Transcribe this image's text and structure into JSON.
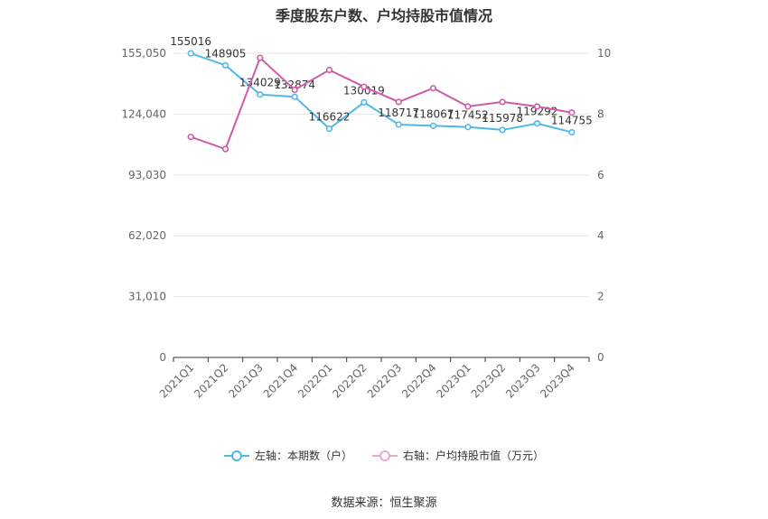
{
  "title": "季度股东户数、户均持股市值情况",
  "source": "数据来源：恒生聚源",
  "legend": {
    "left": "左轴：本期数（户）",
    "right": "右轴：户均持股市值（万元）"
  },
  "colors": {
    "left_series": "#4fb8ea",
    "right_series": "#cf5aa5",
    "grid": "#e6e6e6",
    "axis": "#333333"
  },
  "chart_data": {
    "type": "line",
    "title": "季度股东户数、户均持股市值情况",
    "categories": [
      "2021Q1",
      "2021Q2",
      "2021Q3",
      "2021Q4",
      "2022Q1",
      "2022Q2",
      "2022Q3",
      "2022Q4",
      "2023Q1",
      "2023Q2",
      "2023Q3",
      "2023Q4"
    ],
    "y_left": {
      "ylim": [
        0,
        155050
      ],
      "ticks": [
        0,
        31010,
        62020,
        93030,
        124040,
        155050
      ],
      "tick_labels": [
        "0",
        "31,010",
        "62,020",
        "93,030",
        "124,040",
        "155,050"
      ]
    },
    "y_right": {
      "ylim": [
        0,
        10
      ],
      "ticks": [
        0,
        2,
        4,
        6,
        8,
        10
      ],
      "tick_labels": [
        "0",
        "2",
        "4",
        "6",
        "8",
        "10"
      ]
    },
    "grid": true,
    "legend_position": "bottom",
    "series": [
      {
        "name": "左轴：本期数（户）",
        "axis": "left",
        "values": [
          155016,
          148905,
          134029,
          132874,
          116622,
          130019,
          118717,
          118067,
          117452,
          115978,
          119292,
          114755
        ],
        "labels": [
          "155016",
          "148905",
          "134029",
          "132874",
          "116622",
          "130019",
          "118717",
          "118067",
          "117452",
          "115978",
          "119292",
          "114755"
        ]
      },
      {
        "name": "右轴：户均持股市值（万元）",
        "axis": "right",
        "values": [
          7.25,
          6.85,
          9.85,
          8.8,
          9.45,
          8.9,
          8.4,
          8.85,
          8.25,
          8.4,
          8.25,
          8.05
        ]
      }
    ]
  }
}
